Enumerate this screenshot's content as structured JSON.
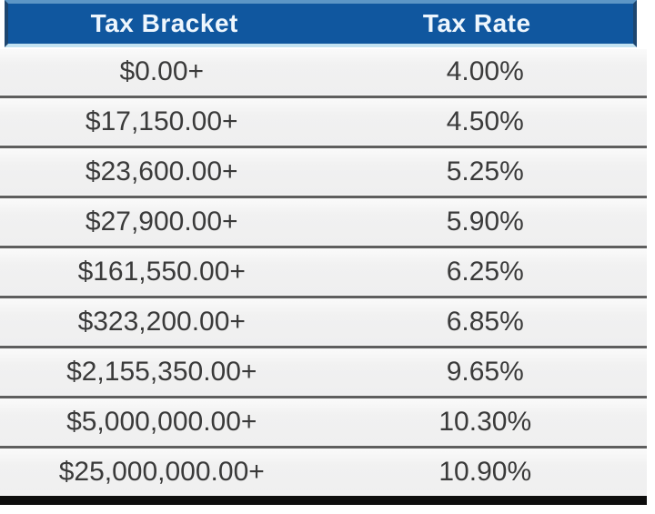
{
  "chart_data": {
    "type": "table",
    "columns": [
      "Tax Bracket",
      "Tax Rate"
    ],
    "rows": [
      [
        "$0.00+",
        "4.00%"
      ],
      [
        "$17,150.00+",
        "4.50%"
      ],
      [
        "$23,600.00+",
        "5.25%"
      ],
      [
        "$27,900.00+",
        "5.90%"
      ],
      [
        "$161,550.00+",
        "6.25%"
      ],
      [
        "$323,200.00+",
        "6.85%"
      ],
      [
        "$2,155,350.00+",
        "9.65%"
      ],
      [
        "$5,000,000.00+",
        "10.30%"
      ],
      [
        "$25,000,000.00+",
        "10.90%"
      ]
    ],
    "layout": {
      "header_position": "top",
      "column_alignment": "center",
      "grid": "horizontal-separators"
    }
  },
  "header": {
    "col1": "Tax Bracket",
    "col2": "Tax Rate"
  },
  "colors": {
    "header_bg": "#10579f",
    "header_text": "#eef6fd",
    "header_border_dark": "#1d4670",
    "header_border_top": "#5d96c6",
    "header_border_light": "#c3e3f2",
    "row_bg": "#f1f1f1",
    "row_text": "#3a3a3a",
    "separator": "#5e5e5e",
    "bottom_bar": "#0d0d0d"
  }
}
